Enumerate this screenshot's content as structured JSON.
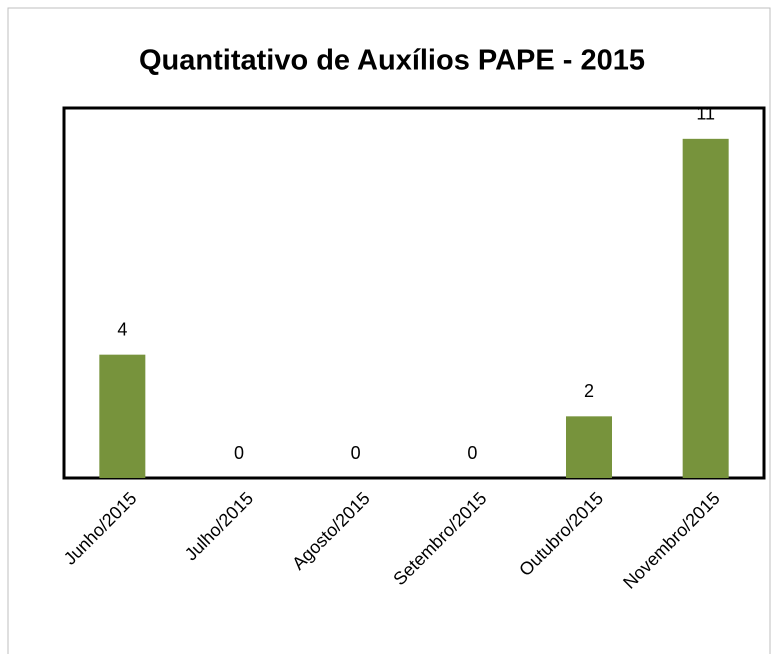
{
  "chart_data": {
    "type": "bar",
    "title": "Quantitativo de Auxílios PAPE - 2015",
    "categories": [
      "Junho/2015",
      "Julho/2015",
      "Agosto/2015",
      "Setembro/2015",
      "Outubro/2015",
      "Novembro/2015"
    ],
    "values": [
      4,
      0,
      0,
      0,
      2,
      11
    ],
    "color": "#77933c",
    "ylim": [
      0,
      12
    ]
  }
}
